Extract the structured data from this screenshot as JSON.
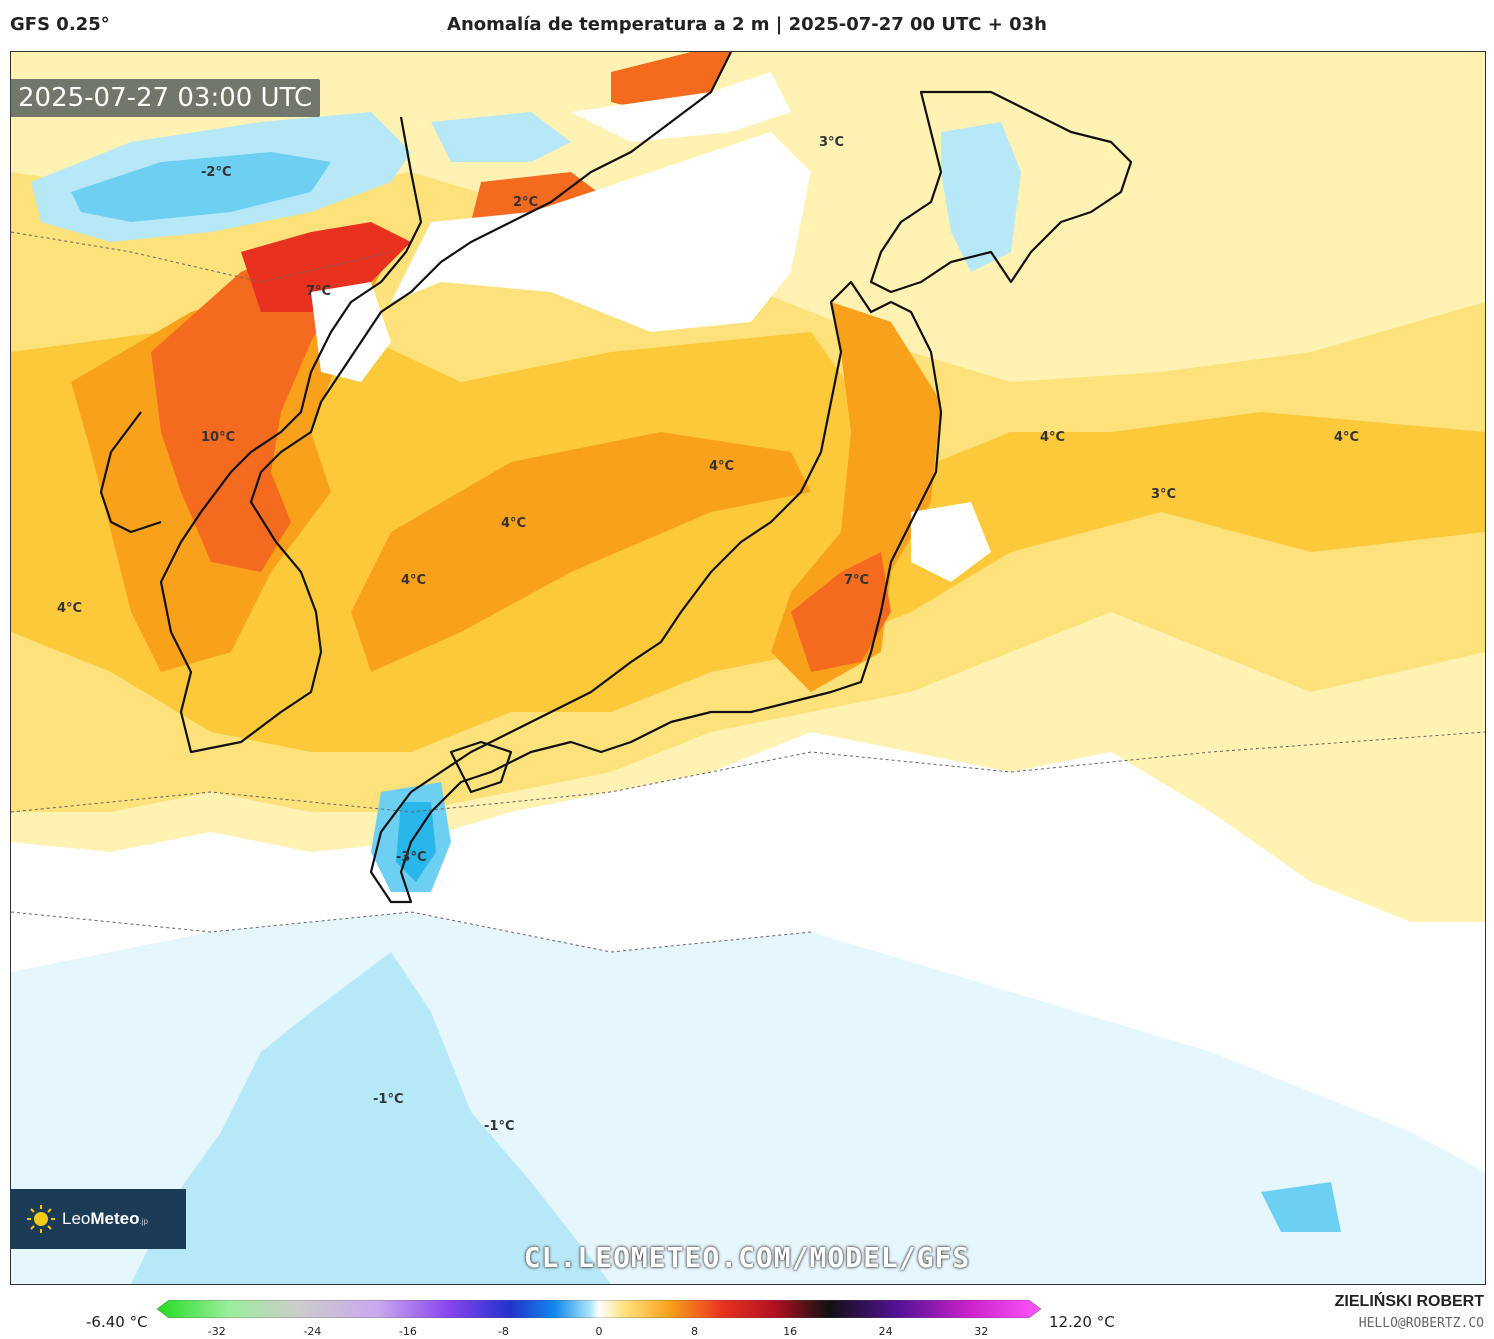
{
  "header": {
    "model": "GFS 0.25°",
    "title": "Anomalía de temperatura a 2 m | 2025-07-27 00 UTC + 03h"
  },
  "map": {
    "timestamp": "2025-07-27 03:00 UTC",
    "watermark": "CL.LEOMETEO.COM/MODEL/GFS",
    "logo": {
      "brand_light": "Leo",
      "brand_bold": "Meteo",
      "suffix": ".jp"
    },
    "labels": [
      {
        "text": "-2°C"
      },
      {
        "text": "2°C"
      },
      {
        "text": "3°C"
      },
      {
        "text": "7°C"
      },
      {
        "text": "10°C"
      },
      {
        "text": "4°C"
      },
      {
        "text": "4°C"
      },
      {
        "text": "4°C"
      },
      {
        "text": "4°C"
      },
      {
        "text": "4°C"
      },
      {
        "text": "4°C"
      },
      {
        "text": "3°C"
      },
      {
        "text": "7°C"
      },
      {
        "text": "-3°C"
      },
      {
        "text": "-1°C"
      },
      {
        "text": "-1°C"
      }
    ],
    "palette": {
      "neg1": "#e6f6fd",
      "neg2": "#b7e8f8",
      "neg3": "#6dd0f2",
      "neg4": "#29b6ea",
      "pos1": "#fff2b3",
      "pos2": "#fde17a",
      "pos3": "#fcc93a",
      "pos4": "#f9a11b",
      "pos5": "#f46b1f",
      "pos6": "#e8321f",
      "land_border": "#111111"
    }
  },
  "colorbar": {
    "min_label": "-6.40 °C",
    "max_label": "12.20 °C",
    "ticks": [
      "-32",
      "-24",
      "-16",
      "-8",
      "0",
      "8",
      "16",
      "24",
      "32"
    ],
    "range": [
      -36,
      36
    ]
  },
  "credits": {
    "author": "ZIELIŃSKI ROBERT",
    "email": "HELLO@ROBERTZ.CO"
  }
}
